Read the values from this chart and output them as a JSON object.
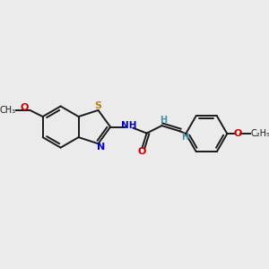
{
  "bg_color": "#ebebeb",
  "bond_color": "#1a1a1a",
  "bond_width": 1.4,
  "S_color": "#b8860b",
  "N_color": "#0000cc",
  "O_color": "#cc0000",
  "H_color": "#4a8fa8",
  "C_color": "#1a1a1a",
  "figsize": [
    3.0,
    3.0
  ],
  "dpi": 100,
  "xlim": [
    0,
    10
  ],
  "ylim": [
    0,
    10
  ]
}
